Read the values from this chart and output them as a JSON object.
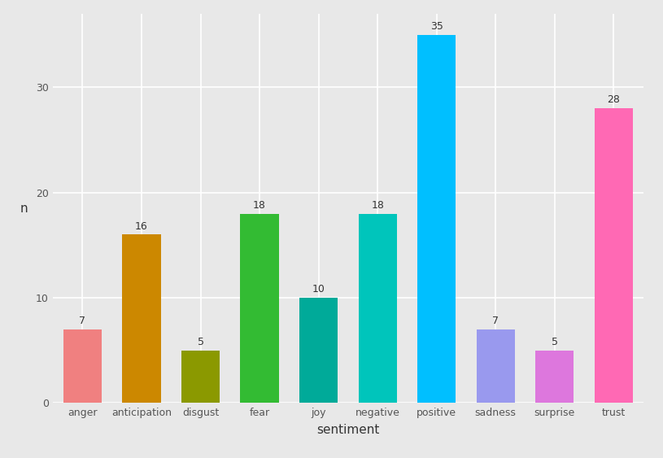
{
  "categories": [
    "anger",
    "anticipation",
    "disgust",
    "fear",
    "joy",
    "negative",
    "positive",
    "sadness",
    "surprise",
    "trust"
  ],
  "values": [
    7,
    16,
    5,
    18,
    10,
    18,
    35,
    7,
    5,
    28
  ],
  "bar_colors": [
    "#F08080",
    "#CC8800",
    "#8B9900",
    "#33BB33",
    "#00AA99",
    "#00C5BB",
    "#00BFFF",
    "#9999EE",
    "#DD77DD",
    "#FF69B4"
  ],
  "xlabel": "sentiment",
  "ylabel": "n",
  "ylim": [
    0,
    37
  ],
  "yticks": [
    0,
    10,
    20,
    30
  ],
  "plot_bg_color": "#E8E8E8",
  "fig_bg_color": "#E8E8E8",
  "grid_color": "#FFFFFF",
  "label_fontsize": 11,
  "tick_fontsize": 9,
  "value_label_fontsize": 9
}
